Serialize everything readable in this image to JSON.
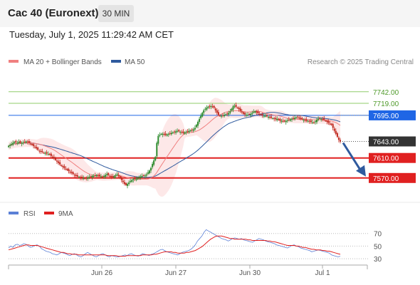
{
  "header": {
    "instrument": "Cac 40 (Euronext)",
    "timeframe": "30 MIN",
    "datetime": "Tuesday, July 1, 2025 11:29:42 AM CET"
  },
  "legend": {
    "ma20_label": "MA 20 + Bollinger Bands",
    "ma50_label": "MA 50",
    "credit": "Research © 2025 Trading Central",
    "rsi_label": "RSI",
    "ma9_label": "9MA"
  },
  "colors": {
    "ma20": "#f08080",
    "ma50": "#2f5a9e",
    "bollinger_fill": "#fde4e4",
    "candle_up": "#2e8b2e",
    "candle_down": "#c0281e",
    "resistance_green": "#8fcc6a",
    "pivot_blue": "#1f66e5",
    "support_red": "#e02020",
    "current_price_bg": "#333333",
    "rsi_line": "#5b80d6",
    "rsi_ma": "#e02020",
    "forecast_arrow": "#2f5a9e"
  },
  "chart_data": [
    {
      "type": "candlestick",
      "title": "Cac 40 (Euronext)",
      "x_tick_labels": [
        "Jun 26",
        "Jun 27",
        "Jun 30",
        "Jul 1"
      ],
      "y_range": [
        7530,
        7790
      ],
      "levels": [
        {
          "label": "7742.00",
          "value": 7742,
          "kind": "resistance"
        },
        {
          "label": "7719.00",
          "value": 7719,
          "kind": "resistance"
        },
        {
          "label": "7695.00",
          "value": 7695,
          "kind": "pivot"
        },
        {
          "label": "7643.00",
          "value": 7643,
          "kind": "current"
        },
        {
          "label": "7610.00",
          "value": 7610,
          "kind": "support"
        },
        {
          "label": "7570.00",
          "value": 7570,
          "kind": "support"
        }
      ],
      "close_series": [
        7634,
        7636,
        7638,
        7640,
        7642,
        7641,
        7640,
        7642,
        7640,
        7640,
        7641,
        7642,
        7643,
        7642,
        7640,
        7638,
        7636,
        7634,
        7632,
        7629,
        7626,
        7624,
        7622,
        7622,
        7620,
        7620,
        7619,
        7618,
        7617,
        7614,
        7612,
        7609,
        7606,
        7603,
        7600,
        7597,
        7594,
        7592,
        7590,
        7588,
        7586,
        7584,
        7582,
        7580,
        7578,
        7576,
        7574,
        7573,
        7572,
        7571,
        7570,
        7570,
        7569,
        7570,
        7571,
        7572,
        7573,
        7574,
        7574,
        7575,
        7576,
        7575,
        7574,
        7573,
        7572,
        7574,
        7576,
        7578,
        7576,
        7574,
        7572,
        7572,
        7574,
        7576,
        7578,
        7574,
        7570,
        7566,
        7562,
        7558,
        7556,
        7558,
        7561,
        7564,
        7566,
        7568,
        7568,
        7568,
        7570,
        7572,
        7573,
        7574,
        7575,
        7575,
        7577,
        7581,
        7585,
        7590,
        7598,
        7605,
        7612,
        7640,
        7654,
        7656,
        7658,
        7658,
        7657,
        7656,
        7657,
        7658,
        7659,
        7660,
        7661,
        7662,
        7663,
        7664,
        7663,
        7662,
        7661,
        7660,
        7661,
        7662,
        7663,
        7664,
        7665,
        7666,
        7667,
        7670,
        7676,
        7682,
        7688,
        7694,
        7700,
        7705,
        7708,
        7710,
        7712,
        7713,
        7713,
        7712,
        7710,
        7705,
        7700,
        7696,
        7694,
        7694,
        7695,
        7696,
        7697,
        7698,
        7700,
        7703,
        7708,
        7713,
        7714,
        7712,
        7710,
        7707,
        7704,
        7701,
        7698,
        7697,
        7696,
        7696,
        7697,
        7698,
        7700,
        7702,
        7703,
        7701,
        7699,
        7697,
        7696,
        7695,
        7694,
        7694,
        7693,
        7692,
        7691,
        7690,
        7689,
        7688,
        7687,
        7688,
        7686,
        7684,
        7684,
        7683,
        7683,
        7684,
        7685,
        7686,
        7687,
        7688,
        7689,
        7690,
        7691,
        7692,
        7690,
        7688,
        7687,
        7686,
        7685,
        7684,
        7684,
        7683,
        7682,
        7681,
        7680,
        7683,
        7686,
        7688,
        7689,
        7688,
        7687,
        7686,
        7684,
        7682,
        7680,
        7678,
        7676,
        7670,
        7664,
        7658,
        7652,
        7646,
        7643
      ]
    },
    {
      "type": "line",
      "title": "RSI",
      "series": [
        {
          "name": "RSI"
        },
        {
          "name": "9MA"
        }
      ],
      "y_ticks": [
        30,
        50,
        70
      ],
      "y_range": [
        20,
        90
      ],
      "rsi": [
        47,
        50,
        48,
        52,
        53,
        51,
        52,
        54,
        53,
        50,
        48,
        49,
        51,
        52,
        50,
        46,
        44,
        42,
        41,
        40,
        38,
        37,
        36,
        38,
        40,
        39,
        38,
        36,
        35,
        37,
        38,
        36,
        34,
        33,
        35,
        38,
        40,
        38,
        36,
        34,
        33,
        35,
        37,
        38,
        36,
        34,
        33,
        35,
        34,
        33,
        33,
        34,
        35,
        36,
        35,
        37,
        38,
        36,
        35,
        34,
        36,
        38,
        37,
        36,
        35,
        37,
        38,
        40,
        42,
        44,
        45,
        43,
        41,
        40,
        39,
        38,
        37,
        36,
        38,
        40,
        41,
        42,
        43,
        45,
        48,
        52,
        58,
        62,
        66,
        72,
        76,
        74,
        72,
        70,
        68,
        66,
        64,
        62,
        61,
        60,
        58,
        60,
        62,
        63,
        62,
        61,
        62,
        60,
        59,
        58,
        57,
        56,
        58,
        60,
        62,
        61,
        60,
        58,
        57,
        56,
        55,
        54,
        52,
        51,
        50,
        49,
        48,
        47,
        49,
        51,
        52,
        50,
        49,
        47,
        46,
        45,
        44,
        43,
        41,
        42,
        43,
        44,
        43,
        42,
        41,
        40,
        39,
        36,
        35,
        34,
        33,
        34
      ],
      "ma9": [
        44,
        45,
        46,
        47,
        48,
        49,
        50,
        51,
        52,
        52,
        51,
        51,
        51,
        51,
        50,
        49,
        48,
        47,
        46,
        45,
        44,
        43,
        42,
        41,
        40,
        40,
        39,
        38,
        38,
        37,
        37,
        37,
        36,
        36,
        36,
        36,
        36,
        36,
        36,
        36,
        36,
        36,
        36,
        36,
        36,
        35,
        35,
        35,
        35,
        35,
        34,
        34,
        34,
        34,
        35,
        35,
        35,
        35,
        35,
        35,
        35,
        36,
        36,
        36,
        36,
        36,
        37,
        37,
        38,
        39,
        40,
        41,
        41,
        41,
        41,
        40,
        40,
        39,
        39,
        39,
        39,
        40,
        40,
        41,
        42,
        43,
        45,
        47,
        49,
        52,
        55,
        58,
        61,
        63,
        65,
        66,
        66,
        66,
        65,
        64,
        63,
        62,
        62,
        61,
        61,
        61,
        61,
        61,
        61,
        60,
        60,
        59,
        59,
        59,
        59,
        59,
        59,
        59,
        58,
        58,
        57,
        57,
        56,
        55,
        54,
        53,
        52,
        51,
        51,
        51,
        51,
        50,
        50,
        49,
        48,
        48,
        47,
        46,
        45,
        45,
        44,
        44,
        44,
        43,
        43,
        42,
        42,
        41,
        40,
        39,
        38,
        37
      ]
    }
  ]
}
